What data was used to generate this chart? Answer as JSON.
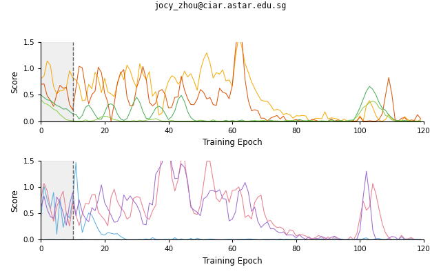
{
  "title": "jocy_zhou@ciar.astar.edu.sg",
  "xlabel": "Training Epoch",
  "ylabel": "Score",
  "xlim": [
    0,
    120
  ],
  "ylim": [
    0,
    1.5
  ],
  "yticks": [
    0.0,
    0.5,
    1.0,
    1.5
  ],
  "xticks": [
    0,
    20,
    40,
    60,
    80,
    100,
    120
  ],
  "dashed_line_x": 10,
  "shaded_region": [
    0,
    10
  ],
  "top_colors": [
    "#f5a800",
    "#d94f00",
    "#44aa55",
    "#88cc44"
  ],
  "bottom_colors": [
    "#55aadd",
    "#e87888",
    "#9966cc",
    "#aaddee"
  ],
  "seed": 42,
  "figsize": [
    6.4,
    4.0
  ],
  "dpi": 100
}
